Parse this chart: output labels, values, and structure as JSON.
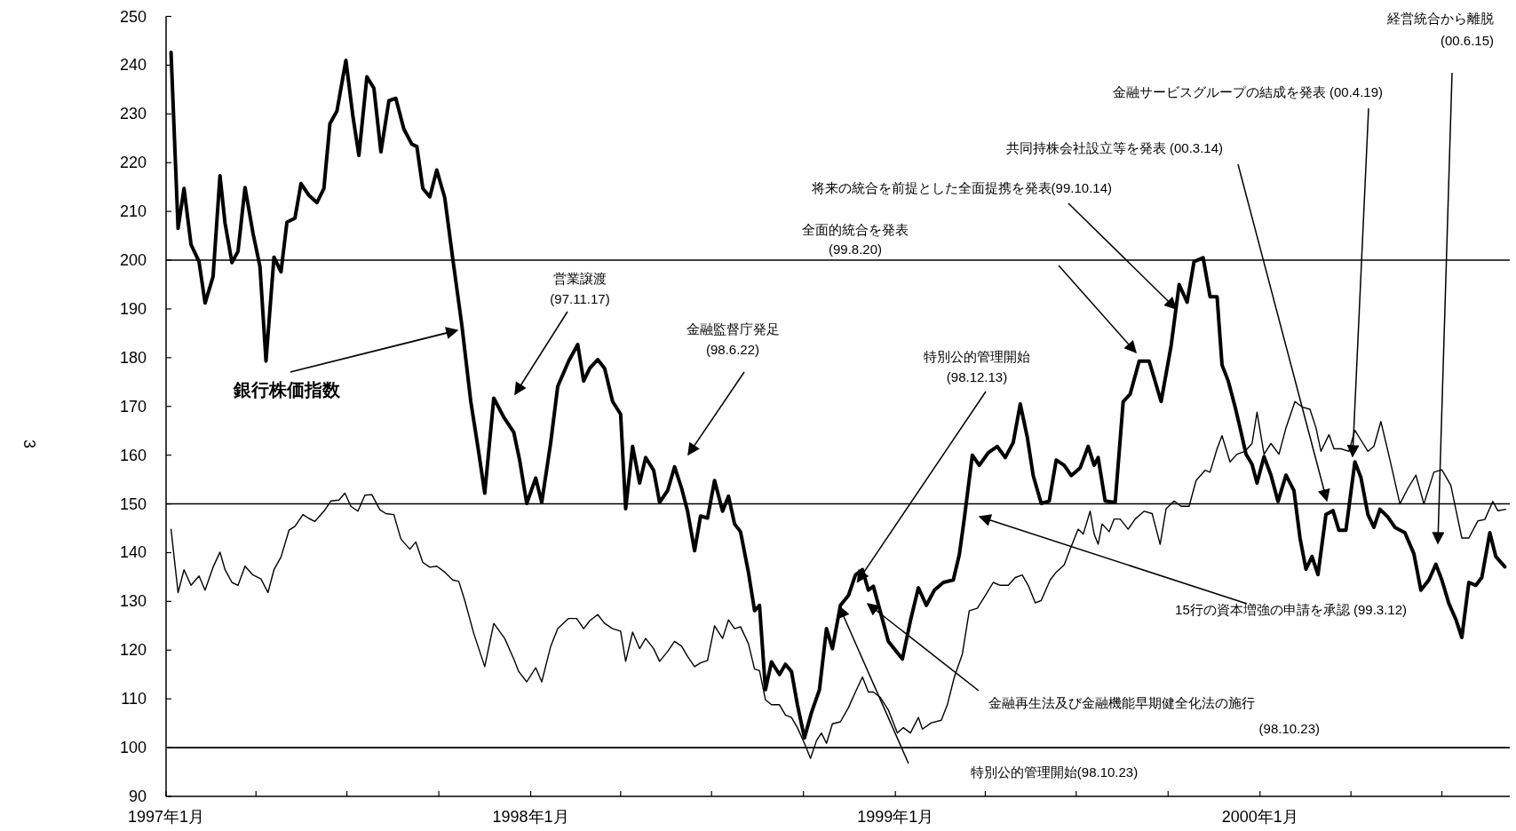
{
  "chart_data": {
    "type": "line",
    "xlim": [
      "1997-01-01",
      "2000-09-07"
    ],
    "ylim": [
      90,
      250
    ],
    "xticks": [
      {
        "value": "1997-01-01",
        "label": "1997年1月"
      },
      {
        "value": "1997-04-01",
        "label": null
      },
      {
        "value": "1997-07-01",
        "label": null
      },
      {
        "value": "1997-10-01",
        "label": null
      },
      {
        "value": "1998-01-01",
        "label": "1998年1月"
      },
      {
        "value": "1998-04-01",
        "label": null
      },
      {
        "value": "1998-07-01",
        "label": null
      },
      {
        "value": "1998-10-01",
        "label": null
      },
      {
        "value": "1999-01-01",
        "label": "1999年1月"
      },
      {
        "value": "1999-04-01",
        "label": null
      },
      {
        "value": "1999-07-01",
        "label": null
      },
      {
        "value": "1999-10-01",
        "label": null
      },
      {
        "value": "2000-01-01",
        "label": "2000年1月"
      },
      {
        "value": "2000-04-01",
        "label": null
      },
      {
        "value": "2000-07-01",
        "label": null
      }
    ],
    "yticks": [
      90,
      100,
      110,
      120,
      130,
      140,
      150,
      160,
      170,
      180,
      190,
      200,
      210,
      220,
      230,
      240,
      250
    ],
    "grid": false,
    "legend": false,
    "marker": "none",
    "line_style": "solid",
    "ref_lines": [
      {
        "axis": "y",
        "value": 100,
        "color": "#000000"
      },
      {
        "axis": "y",
        "value": 150,
        "color": "#000000"
      },
      {
        "axis": "y",
        "value": 200,
        "color": "#000000"
      }
    ],
    "series": [
      {
        "name": "銀行株価指数",
        "color": "#000000",
        "x": [
          "1997-01-06",
          "1997-01-13",
          "1997-01-19",
          "1997-01-26",
          "1997-02-03",
          "1997-02-09",
          "1997-02-17",
          "1997-02-24",
          "1997-03-01",
          "1997-03-08",
          "1997-03-14",
          "1997-03-21",
          "1997-03-29",
          "1997-04-05",
          "1997-04-11",
          "1997-04-19",
          "1997-04-26",
          "1997-05-02",
          "1997-05-10",
          "1997-05-16",
          "1997-05-24",
          "1997-06-01",
          "1997-06-08",
          "1997-06-14",
          "1997-06-21",
          "1997-06-30",
          "1997-07-07",
          "1997-07-13",
          "1997-07-21",
          "1997-07-28",
          "1997-08-04",
          "1997-08-12",
          "1997-08-19",
          "1997-08-27",
          "1997-09-04",
          "1997-09-09",
          "1997-09-15",
          "1997-09-22",
          "1997-09-29",
          "1997-10-07",
          "1997-10-15",
          "1997-10-24",
          "1997-11-02",
          "1997-11-10",
          "1997-11-16",
          "1997-11-25",
          "1997-12-05",
          "1997-12-15",
          "1997-12-21",
          "1997-12-28",
          "1998-01-06",
          "1998-01-12",
          "1998-01-21",
          "1998-01-28",
          "1998-02-08",
          "1998-02-17",
          "1998-02-23",
          "1998-03-01",
          "1998-03-09",
          "1998-03-16",
          "1998-03-24",
          "1998-04-01",
          "1998-04-06",
          "1998-04-13",
          "1998-04-20",
          "1998-04-26",
          "1998-05-04",
          "1998-05-10",
          "1998-05-18",
          "1998-05-25",
          "1998-06-01",
          "1998-06-07",
          "1998-06-14",
          "1998-06-20",
          "1998-06-27",
          "1998-07-04",
          "1998-07-12",
          "1998-07-18",
          "1998-07-24",
          "1998-07-30",
          "1998-08-07",
          "1998-08-13",
          "1998-08-18",
          "1998-08-24",
          "1998-08-30",
          "1998-09-07",
          "1998-09-13",
          "1998-09-19",
          "1998-09-25",
          "1998-10-02",
          "1998-10-09",
          "1998-10-17",
          "1998-10-24",
          "1998-10-30",
          "1998-11-07",
          "1998-11-15",
          "1998-11-22",
          "1998-11-29",
          "1998-12-05",
          "1998-12-10",
          "1998-12-16",
          "1998-12-25",
          "1999-01-08",
          "1999-01-16",
          "1999-01-24",
          "1999-02-01",
          "1999-02-09",
          "1999-02-18",
          "1999-02-28",
          "1999-03-06",
          "1999-03-11",
          "1999-03-19",
          "1999-03-26",
          "1999-04-04",
          "1999-04-13",
          "1999-04-21",
          "1999-04-29",
          "1999-05-06",
          "1999-05-13",
          "1999-05-19",
          "1999-05-27",
          "1999-06-04",
          "1999-06-11",
          "1999-06-19",
          "1999-06-26",
          "1999-07-05",
          "1999-07-13",
          "1999-07-19",
          "1999-07-23",
          "1999-07-30",
          "1999-08-09",
          "1999-08-17",
          "1999-08-24",
          "1999-09-02",
          "1999-09-12",
          "1999-09-24",
          "1999-10-04",
          "1999-10-12",
          "1999-10-20",
          "1999-10-27",
          "1999-11-05",
          "1999-11-12",
          "1999-11-19",
          "1999-11-24",
          "1999-11-30",
          "1999-12-07",
          "1999-12-12",
          "1999-12-18",
          "1999-12-24",
          "1999-12-29",
          "2000-01-05",
          "2000-01-12",
          "2000-01-19",
          "2000-01-27",
          "2000-02-04",
          "2000-02-10",
          "2000-02-16",
          "2000-02-22",
          "2000-02-28",
          "2000-03-07",
          "2000-03-14",
          "2000-03-20",
          "2000-03-27",
          "2000-04-05",
          "2000-04-11",
          "2000-04-18",
          "2000-04-24",
          "2000-04-30",
          "2000-05-08",
          "2000-05-15",
          "2000-05-25",
          "2000-06-03",
          "2000-06-10",
          "2000-06-18",
          "2000-06-25",
          "2000-07-01",
          "2000-07-08",
          "2000-07-15",
          "2000-07-21",
          "2000-07-28",
          "2000-08-04",
          "2000-08-10",
          "2000-08-18",
          "2000-08-24",
          "2000-09-02"
        ],
        "values": [
          242.6,
          206.5,
          214.7,
          203.2,
          199.7,
          191.2,
          196.6,
          217.3,
          207.6,
          199.5,
          201.8,
          214.9,
          205.5,
          198.7,
          179.3,
          200.6,
          197.6,
          207.8,
          208.6,
          215.7,
          213.3,
          211.8,
          214.7,
          228,
          230.6,
          241,
          229.5,
          221.5,
          237.6,
          235.3,
          222.2,
          232.7,
          233.2,
          226.9,
          223.8,
          223.3,
          214.7,
          213,
          218.5,
          212.8,
          200.3,
          186.7,
          171,
          160.5,
          152.2,
          171.7,
          167.8,
          164.7,
          158.9,
          150.1,
          155.3,
          150.3,
          162.6,
          174.1,
          179.3,
          182.7,
          175.2,
          177.8,
          179.6,
          177.8,
          171,
          168.4,
          149,
          161.8,
          154.3,
          159.5,
          156.9,
          150.3,
          152.7,
          157.6,
          153.2,
          148.5,
          140.4,
          147.5,
          147.1,
          154.8,
          148.5,
          151.6,
          145.9,
          144.3,
          135.9,
          128.1,
          129.2,
          111.9,
          117.6,
          115,
          117.1,
          115.6,
          108.8,
          102,
          107.2,
          111.9,
          124.4,
          120.3,
          129.2,
          131.2,
          135.4,
          136.5,
          132.3,
          133.1,
          128.6,
          121.8,
          118.2,
          126,
          132.8,
          129.2,
          132.3,
          133.9,
          134.4,
          139.6,
          147,
          160,
          157.9,
          160.5,
          161.8,
          159.5,
          162.6,
          170.5,
          163.7,
          155.8,
          150.1,
          150.6,
          159,
          157.9,
          155.8,
          157.4,
          161.8,
          157.9,
          159.5,
          150.6,
          150.3,
          171,
          172.5,
          179.3,
          179.3,
          171,
          182.5,
          195,
          191.4,
          199.7,
          200.5,
          192.5,
          192.5,
          178.5,
          175.3,
          169.9,
          165.6,
          160.2,
          158.1,
          154.3,
          159.7,
          155.9,
          150.5,
          155.9,
          152.7,
          143,
          136.6,
          139.2,
          135.5,
          147.8,
          148.6,
          144.6,
          144.6,
          158.6,
          155.4,
          147.8,
          145.2,
          148.9,
          147.3,
          145.2,
          144.1,
          139.8,
          132.3,
          134.4,
          137.6,
          134.4,
          129.6,
          126.3,
          122.6,
          133.9,
          133.3,
          134.9,
          144.1,
          139.2,
          137.1
        ]
      },
      {
        "color": "#000000",
        "x": [
          "1997-01-06",
          "1997-01-13",
          "1997-01-19",
          "1997-01-26",
          "1997-02-03",
          "1997-02-09",
          "1997-02-17",
          "1997-02-24",
          "1997-03-01",
          "1997-03-08",
          "1997-03-14",
          "1997-03-21",
          "1997-03-29",
          "1997-04-06",
          "1997-04-13",
          "1997-04-19",
          "1997-04-26",
          "1997-05-04",
          "1997-05-10",
          "1997-05-18",
          "1997-05-24",
          "1997-05-30",
          "1997-06-08",
          "1997-06-15",
          "1997-06-23",
          "1997-06-29",
          "1997-07-05",
          "1997-07-12",
          "1997-07-19",
          "1997-07-26",
          "1997-08-03",
          "1997-08-09",
          "1997-08-17",
          "1997-08-24",
          "1997-09-02",
          "1997-09-08",
          "1997-09-15",
          "1997-09-22",
          "1997-09-29",
          "1997-10-07",
          "1997-10-15",
          "1997-10-21",
          "1997-10-27",
          "1997-11-05",
          "1997-11-16",
          "1997-11-25",
          "1997-12-06",
          "1997-12-15",
          "1997-12-20",
          "1997-12-28",
          "1998-01-06",
          "1998-01-12",
          "1998-01-21",
          "1998-01-28",
          "1998-02-08",
          "1998-02-16",
          "1998-02-23",
          "1998-03-01",
          "1998-03-09",
          "1998-03-16",
          "1998-03-24",
          "1998-04-01",
          "1998-04-06",
          "1998-04-13",
          "1998-04-20",
          "1998-04-26",
          "1998-05-04",
          "1998-05-10",
          "1998-05-18",
          "1998-05-25",
          "1998-06-01",
          "1998-06-07",
          "1998-06-14",
          "1998-06-20",
          "1998-06-27",
          "1998-07-04",
          "1998-07-12",
          "1998-07-18",
          "1998-07-24",
          "1998-07-30",
          "1998-08-07",
          "1998-08-13",
          "1998-08-18",
          "1998-08-24",
          "1998-08-30",
          "1998-09-07",
          "1998-09-13",
          "1998-09-19",
          "1998-09-25",
          "1998-10-02",
          "1998-10-08",
          "1998-10-14",
          "1998-10-19",
          "1998-10-24",
          "1998-10-30",
          "1998-11-07",
          "1998-11-15",
          "1998-11-22",
          "1998-11-29",
          "1998-12-05",
          "1998-12-10",
          "1998-12-17",
          "1998-12-25",
          "1999-01-03",
          "1999-01-09",
          "1999-01-16",
          "1999-01-24",
          "1999-01-28",
          "1999-02-06",
          "1999-02-16",
          "1999-02-22",
          "1999-03-01",
          "1999-03-09",
          "1999-03-16",
          "1999-03-24",
          "1999-04-01",
          "1999-04-09",
          "1999-04-16",
          "1999-04-24",
          "1999-05-01",
          "1999-05-08",
          "1999-05-14",
          "1999-05-21",
          "1999-05-27",
          "1999-06-05",
          "1999-06-11",
          "1999-06-19",
          "1999-06-25",
          "1999-07-03",
          "1999-07-08",
          "1999-07-15",
          "1999-07-19",
          "1999-07-23",
          "1999-07-27",
          "1999-08-03",
          "1999-08-08",
          "1999-08-14",
          "1999-08-22",
          "1999-08-29",
          "1999-09-07",
          "1999-09-15",
          "1999-09-23",
          "1999-09-29",
          "1999-10-07",
          "1999-10-14",
          "1999-10-22",
          "1999-10-29",
          "1999-11-07",
          "1999-11-12",
          "1999-11-19",
          "1999-11-24",
          "1999-12-02",
          "1999-12-09",
          "1999-12-17",
          "1999-12-24",
          "1999-12-29",
          "2000-01-05",
          "2000-01-12",
          "2000-01-20",
          "2000-01-27",
          "2000-02-05",
          "2000-02-12",
          "2000-02-20",
          "2000-02-26",
          "2000-03-02",
          "2000-03-10",
          "2000-03-15",
          "2000-03-22",
          "2000-03-30",
          "2000-04-05",
          "2000-04-10",
          "2000-04-18",
          "2000-04-24",
          "2000-05-01",
          "2000-05-10",
          "2000-05-20",
          "2000-05-28",
          "2000-06-05",
          "2000-06-13",
          "2000-06-23",
          "2000-07-01",
          "2000-07-10",
          "2000-07-21",
          "2000-07-28",
          "2000-08-06",
          "2000-08-13",
          "2000-08-21",
          "2000-08-26",
          "2000-09-03"
        ],
        "values": [
          144.8,
          131.8,
          136.5,
          133.3,
          135.2,
          132.3,
          137,
          140.1,
          136.5,
          133.9,
          133.3,
          137.2,
          135.4,
          134.6,
          131.8,
          136.5,
          139.1,
          144.6,
          145.4,
          147.8,
          147,
          146.4,
          148.5,
          150.6,
          150.8,
          152.2,
          149.5,
          148.5,
          151.8,
          151.9,
          148.8,
          148,
          147.8,
          142.8,
          140.7,
          142.2,
          138,
          137,
          137.2,
          136,
          134.4,
          134.1,
          130.2,
          123.4,
          116.6,
          125.5,
          122.4,
          118.2,
          115.6,
          113.5,
          116.4,
          113.5,
          120.8,
          124.4,
          126.5,
          126.5,
          124.4,
          126,
          127.3,
          125.5,
          124.4,
          123.9,
          117.7,
          123.7,
          120.3,
          122.4,
          120.3,
          117.7,
          119.7,
          121.8,
          120.8,
          118.7,
          116.6,
          117.4,
          117.9,
          125,
          122.4,
          126.2,
          124.4,
          124.8,
          121.3,
          116.1,
          115.8,
          109.8,
          108.8,
          108.8,
          106.7,
          106.2,
          104.1,
          100.9,
          97.8,
          101.4,
          103,
          100.9,
          104.9,
          105.3,
          108.2,
          111.4,
          114.5,
          111.4,
          111.4,
          110.3,
          107.7,
          103,
          104.1,
          103,
          106.2,
          103.8,
          105.1,
          105.6,
          108.8,
          114.5,
          119.2,
          128.1,
          128.6,
          131.2,
          133.9,
          133.3,
          133.3,
          134.9,
          135.4,
          133.3,
          129.7,
          130.2,
          134.4,
          136,
          137.5,
          140.7,
          144.8,
          143.8,
          148.5,
          143.8,
          141.7,
          145.9,
          144.3,
          146.9,
          146.9,
          144.8,
          146.9,
          148.5,
          148,
          141.7,
          149,
          150.6,
          149.5,
          149.5,
          154.8,
          156.9,
          156.5,
          161.3,
          164,
          158.6,
          160.2,
          160.8,
          162.4,
          168.8,
          160.2,
          162.4,
          160.2,
          165.6,
          171,
          169.9,
          169.4,
          165.6,
          160.8,
          164.2,
          161.3,
          161.3,
          160.8,
          165.1,
          163.4,
          160.8,
          161.8,
          166.9,
          159.1,
          150,
          153.2,
          155.9,
          150,
          156.5,
          157,
          153.8,
          143,
          143,
          146.5,
          146.8,
          150.5,
          148.6,
          148.9
        ]
      }
    ],
    "annotations": [
      "営業譲渡\n(97.11.17)",
      "金融監督庁発足\n(98.6.22)",
      {
        "text": "特別公的管理開始\n(98.12.13)",
        "x": "1998-11-24",
        "y": 134
      },
      "全面的統合を発表\n(99.8.20)",
      {
        "text": "将来の統合を前提とした全面提携を発表(99.10.14)",
        "x": "1999-10-09",
        "y": 190
      },
      "共同持株会社設立等を発表 (00.3.14)",
      "金融サービスグループの結成を発表 (00.4.19)",
      "経営統合から離脱\n(00.6.15)",
      "15行の資本増強の申請を承認 (99.3.12)",
      "金融再生法及び金融機能早期健全化法の施行\n(98.10.23)",
      "特別公的管理開始(98.10.23)",
      "3"
    ]
  }
}
